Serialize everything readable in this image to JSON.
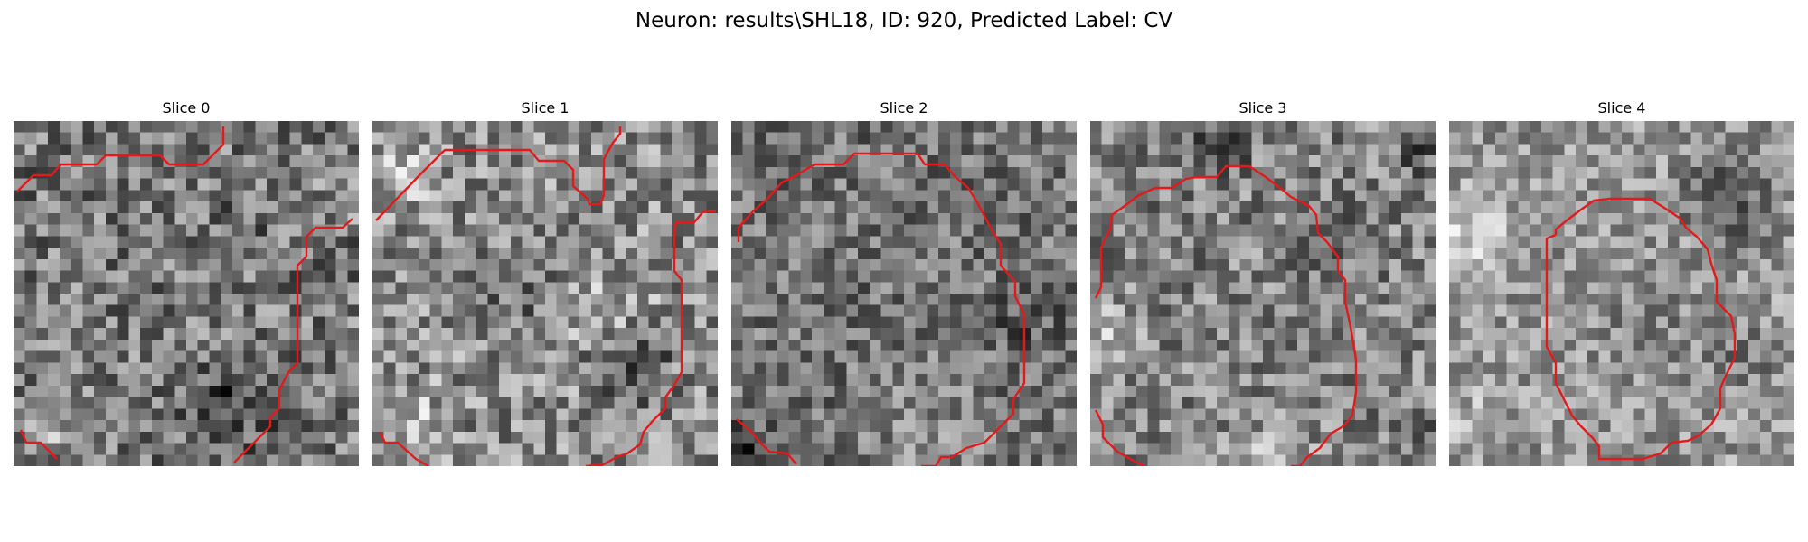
{
  "figure": {
    "title": "Neuron: results\\SHL18, ID: 920, Predicted Label: CV"
  },
  "panels": [
    {
      "title": "Slice 0"
    },
    {
      "title": "Slice 1"
    },
    {
      "title": "Slice 2"
    },
    {
      "title": "Slice 3"
    },
    {
      "title": "Slice 4"
    }
  ],
  "colors": {
    "contour": "#e31a1c",
    "colormap": "gray"
  }
}
